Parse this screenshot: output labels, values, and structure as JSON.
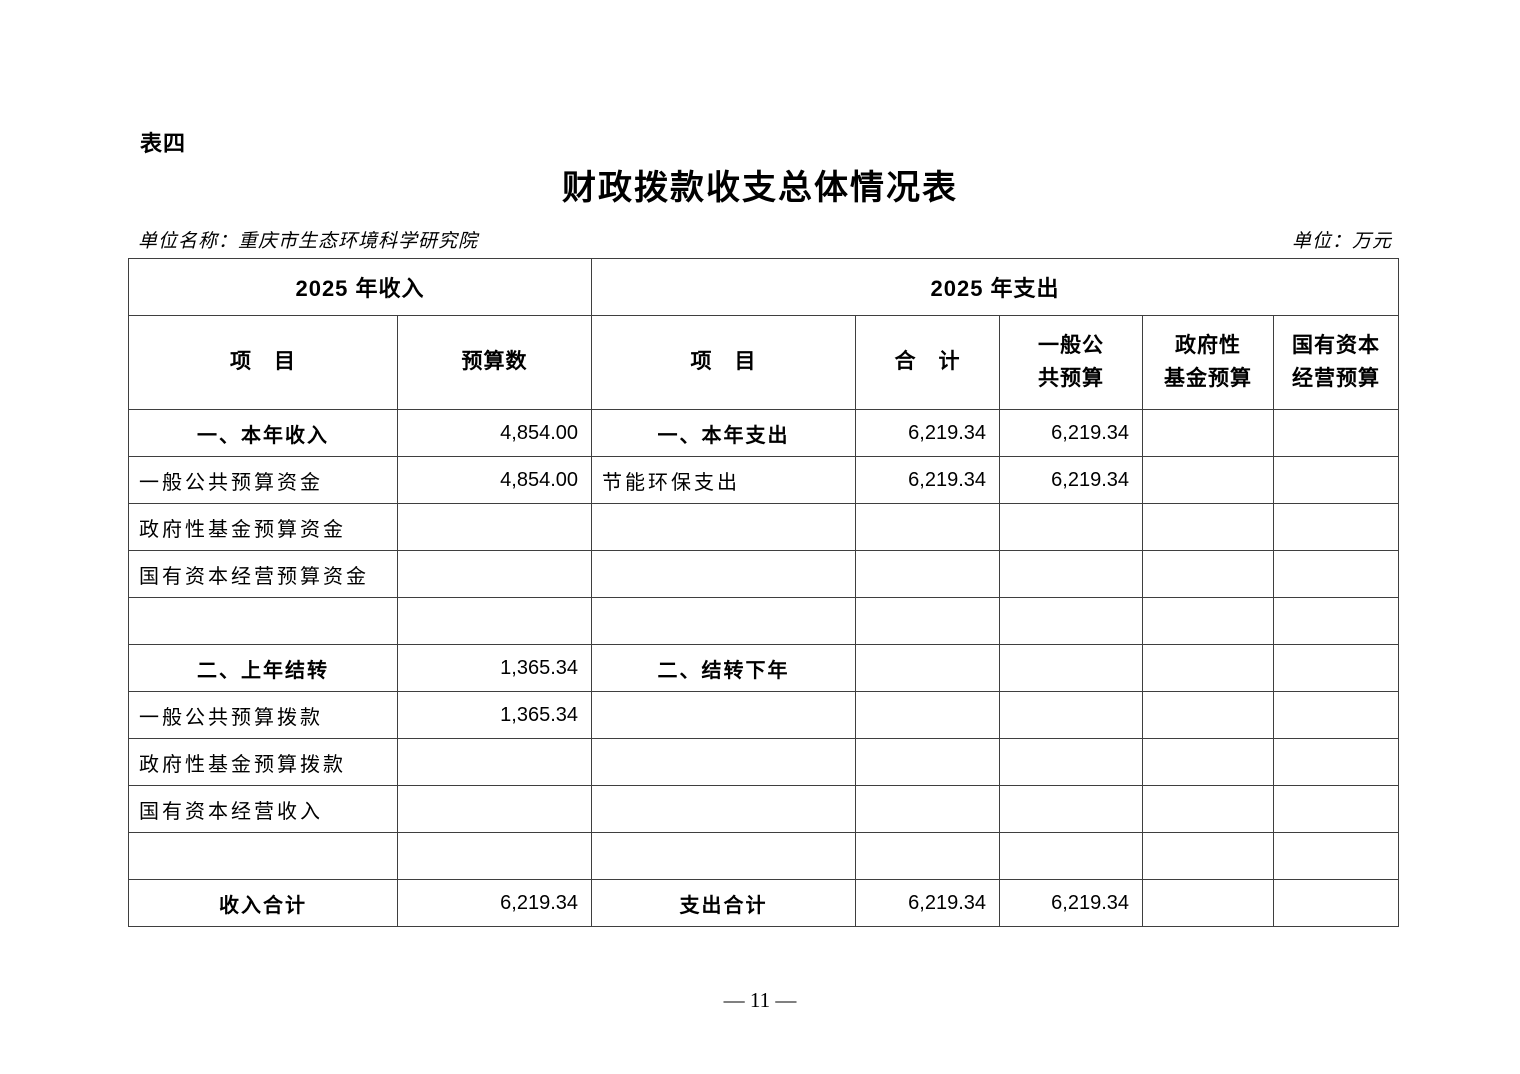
{
  "page": {
    "table_label": "表四",
    "title": "财政拨款收支总体情况表",
    "unit_name": "单位名称：重庆市生态环境科学研究院",
    "unit": "单位：万元",
    "page_number": "— 11 —"
  },
  "table": {
    "group_headers": {
      "income": "2025 年收入",
      "expense": "2025 年支出"
    },
    "column_headers": [
      "项　目",
      "预算数",
      "项　目",
      "合　计",
      "一般公\n共预算",
      "政府性\n基金预算",
      "国有资本\n经营预算"
    ],
    "rows": [
      {
        "type": "section",
        "cells": [
          "一、本年收入",
          "4,854.00",
          "一、本年支出",
          "6,219.34",
          "6,219.34",
          "",
          ""
        ]
      },
      {
        "type": "detail",
        "cells": [
          "一般公共预算资金",
          "4,854.00",
          "节能环保支出",
          "6,219.34",
          "6,219.34",
          "",
          ""
        ]
      },
      {
        "type": "detail",
        "cells": [
          "政府性基金预算资金",
          "",
          "",
          "",
          "",
          "",
          ""
        ]
      },
      {
        "type": "detail",
        "cells": [
          "国有资本经营预算资金",
          "",
          "",
          "",
          "",
          "",
          ""
        ]
      },
      {
        "type": "empty",
        "cells": [
          "",
          "",
          "",
          "",
          "",
          "",
          ""
        ]
      },
      {
        "type": "section",
        "cells": [
          "二、上年结转",
          "1,365.34",
          "二、结转下年",
          "",
          "",
          "",
          ""
        ]
      },
      {
        "type": "detail",
        "cells": [
          "一般公共预算拨款",
          "1,365.34",
          "",
          "",
          "",
          "",
          ""
        ]
      },
      {
        "type": "detail",
        "cells": [
          "政府性基金预算拨款",
          "",
          "",
          "",
          "",
          "",
          ""
        ]
      },
      {
        "type": "detail",
        "cells": [
          "国有资本经营收入",
          "",
          "",
          "",
          "",
          "",
          ""
        ]
      },
      {
        "type": "empty",
        "cells": [
          "",
          "",
          "",
          "",
          "",
          "",
          ""
        ]
      },
      {
        "type": "total",
        "cells": [
          "收入合计",
          "6,219.34",
          "支出合计",
          "6,219.34",
          "6,219.34",
          "",
          ""
        ]
      }
    ]
  }
}
